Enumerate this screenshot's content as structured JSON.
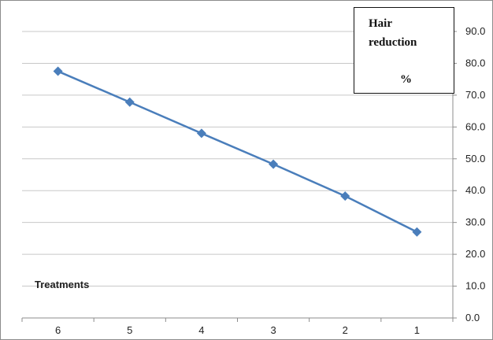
{
  "chart_data": {
    "type": "line",
    "x": [
      "6",
      "5",
      "4",
      "3",
      "2",
      "1"
    ],
    "series": [
      {
        "values": [
          77.5,
          67.8,
          58.0,
          48.3,
          38.3,
          27.0
        ],
        "color": "#4a7ebb",
        "marker": "diamond"
      }
    ],
    "yticks": [
      "0.0",
      "10.0",
      "20.0",
      "30.0",
      "40.0",
      "50.0",
      "60.0",
      "70.0",
      "80.0",
      "90.0"
    ],
    "ylim": [
      0,
      90
    ],
    "y_axis_side": "right",
    "grid": true,
    "annotation_label": "Treatments",
    "title_box": {
      "line1": "Hair",
      "line2": "reduction",
      "line3": "%"
    }
  }
}
